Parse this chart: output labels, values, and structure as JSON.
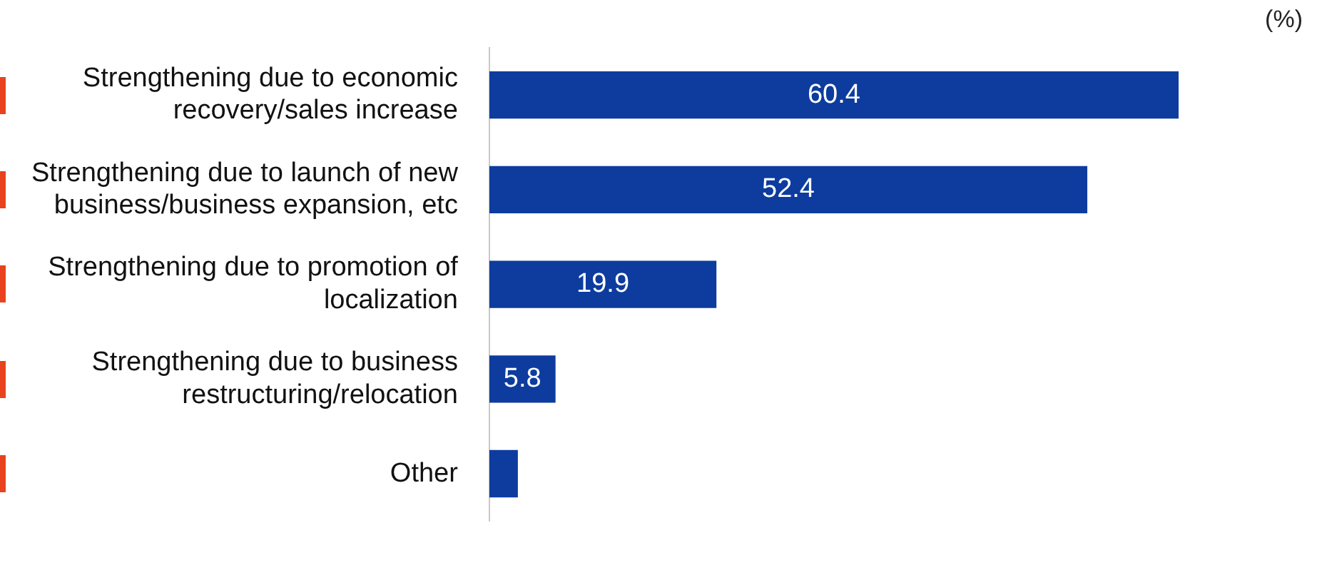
{
  "chart_data": {
    "type": "bar",
    "orientation": "horizontal",
    "categories": [
      "Strengthening due to economic recovery/sales increase",
      "Strengthening due to launch of new business/business expansion, etc",
      "Strengthening due to promotion of localization",
      "Strengthening due to business restructuring/relocation",
      "Other"
    ],
    "values": [
      60.4,
      52.4,
      19.9,
      5.8,
      2.5
    ],
    "value_labels": [
      "60.4",
      "52.4",
      "19.9",
      "5.8",
      null
    ],
    "color": "#0d3c9e",
    "legend": false,
    "tick_labels": "y",
    "annotations": [
      "(%)"
    ]
  }
}
